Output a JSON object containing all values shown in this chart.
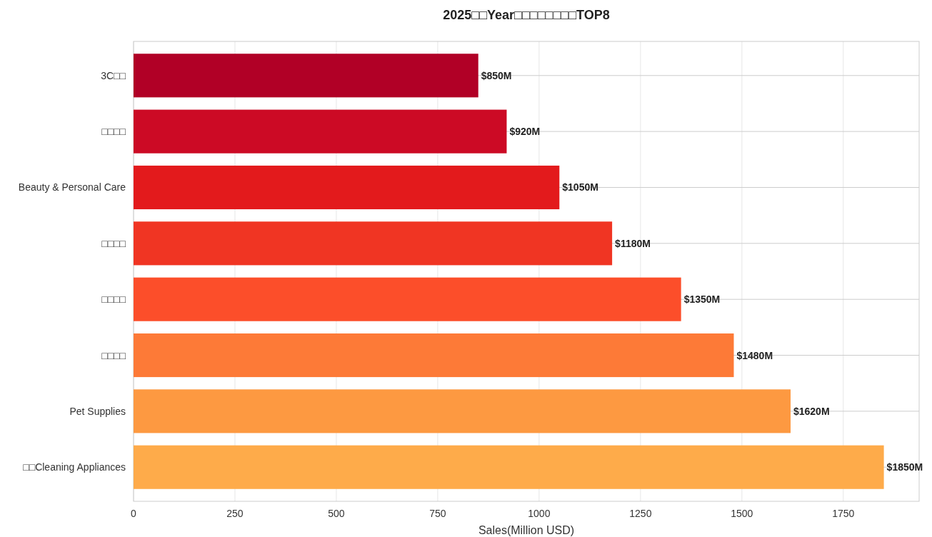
{
  "chart_data": {
    "type": "bar",
    "orientation": "horizontal",
    "title": "2025□□Year□□□□□□□□TOP8",
    "xlabel": "Sales(Million USD)",
    "categories": [
      "3C□□",
      "□□□□",
      "Beauty & Personal Care",
      "□□□□",
      "□□□□",
      "□□□□",
      "Pet Supplies",
      "□□Cleaning Appliances"
    ],
    "values": [
      850,
      920,
      1050,
      1180,
      1350,
      1480,
      1620,
      1850
    ],
    "colors": [
      "#b10026",
      "#cc0a25",
      "#e31a1c",
      "#f03523",
      "#fc4e2a",
      "#fd7a37",
      "#fd9941",
      "#feab4a"
    ],
    "value_labels": [
      "$850M",
      "$920M",
      "$1050M",
      "$1180M",
      "$1350M",
      "$1480M",
      "$1620M",
      "$1850M"
    ],
    "xlim": [
      0,
      1937
    ],
    "xticks": [
      0,
      250,
      500,
      750,
      1000,
      1250,
      1500,
      1750
    ],
    "grid": true
  }
}
